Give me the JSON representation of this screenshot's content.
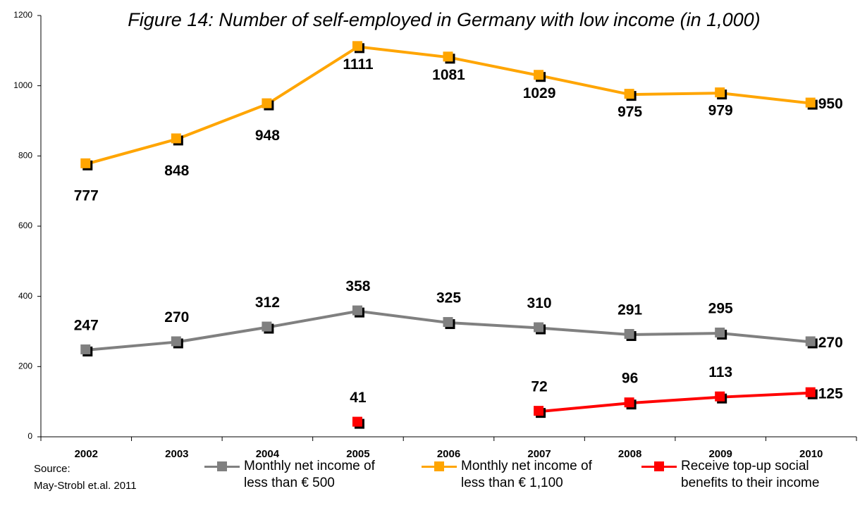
{
  "chart_data": {
    "type": "line",
    "title": "Figure 14: Number of self-employed in Germany with low income (in 1,000)",
    "source": [
      "Source:",
      "May-Strobl et.al. 2011"
    ],
    "categories": [
      "2002",
      "2003",
      "2004",
      "2005",
      "2006",
      "2007",
      "2008",
      "2009",
      "2010"
    ],
    "series": [
      {
        "name": "Monthly net income of less than € 500",
        "color": "#808080",
        "values": [
          247,
          270,
          312,
          358,
          325,
          310,
          291,
          295,
          270
        ]
      },
      {
        "name": "Monthly net income of less than € 1,100",
        "color": "#ffa500",
        "values": [
          777,
          848,
          948,
          1111,
          1081,
          1029,
          975,
          979,
          950
        ]
      },
      {
        "name": "Receive top-up social benefits to their income",
        "color": "#ff0000",
        "values": [
          null,
          null,
          null,
          41,
          null,
          72,
          96,
          113,
          125
        ]
      }
    ],
    "ylim": [
      0,
      1200
    ],
    "yticks": [
      0,
      200,
      400,
      600,
      800,
      1000,
      1200
    ],
    "grid": false
  }
}
